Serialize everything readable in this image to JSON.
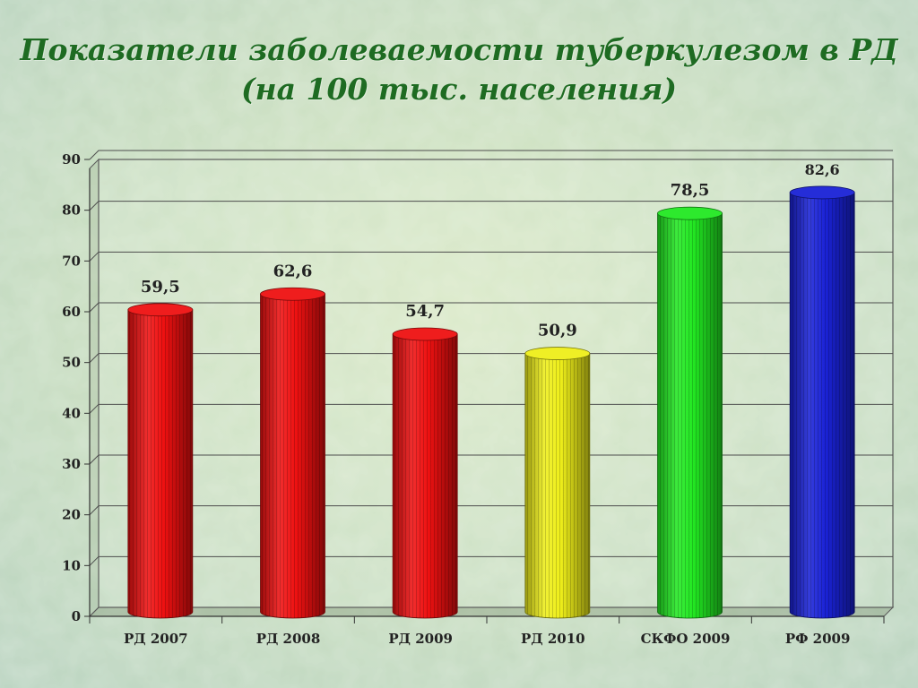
{
  "title_line_1": "Показатели заболеваемости туберкулезом в РД",
  "title_line_2": "(на 100 тыс. населения)",
  "chart_data": {
    "type": "bar",
    "style": "3d-cylinder",
    "title": "Показатели заболеваемости туберкулезом в РД (на 100 тыс. населения)",
    "categories": [
      "РД 2007",
      "РД 2008",
      "РД 2009",
      "РД 2010",
      "СКФО 2009",
      "РФ 2009"
    ],
    "values": [
      59.5,
      62.6,
      54.7,
      50.9,
      78.5,
      82.6
    ],
    "value_labels": [
      "59,5",
      "62,6",
      "54,7",
      "50,9",
      "78,5",
      "82,6"
    ],
    "bar_colors": [
      "#ee1111",
      "#ee1111",
      "#ee1111",
      "#eeee1a",
      "#22e822",
      "#1a22d6"
    ],
    "ylim": [
      0,
      90
    ],
    "yticks": [
      0,
      10,
      20,
      30,
      40,
      50,
      60,
      70,
      80,
      90
    ],
    "xlabel": "",
    "ylabel": "",
    "grid": true,
    "legend": "none"
  }
}
